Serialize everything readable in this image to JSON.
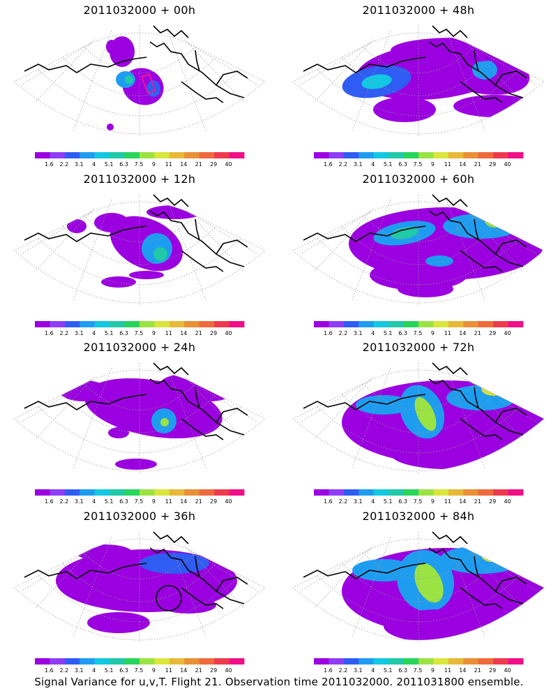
{
  "colors": {
    "bins": [
      "#9b00e0",
      "#8f3df5",
      "#2f5cf2",
      "#1e9df0",
      "#12c8e2",
      "#20c9a8",
      "#27d55a",
      "#9be342",
      "#d9e63a",
      "#e8b938",
      "#e89035",
      "#ee6a3b",
      "#ee3a4f",
      "#f00f86"
    ],
    "coast": "#000000",
    "grid": "#9a9a9a",
    "track": "#ff1493"
  },
  "colorbar": {
    "labels": [
      "1.6",
      "2.2",
      "3.1",
      "4",
      "5.1",
      "6.3",
      "7.5",
      "9",
      "11",
      "14",
      "21",
      "29",
      "40"
    ]
  },
  "panels": [
    {
      "title": "2011032000 + 00h"
    },
    {
      "title": "2011032000 + 48h"
    },
    {
      "title": "2011032000 + 12h"
    },
    {
      "title": "2011032000 + 60h"
    },
    {
      "title": "2011032000 + 24h"
    },
    {
      "title": "2011032000 + 72h"
    },
    {
      "title": "2011032000 + 36h"
    },
    {
      "title": "2011032000 + 84h"
    }
  ],
  "chart_data": {
    "type": "heatmap",
    "title": "Signal Variance for u,v,T. Flight 21. Observation time 2011032000. 2011031800 ensemble.",
    "base_time": "2011032000",
    "lead_times_h": [
      0,
      12,
      24,
      36,
      48,
      60,
      72,
      84
    ],
    "color_levels": [
      1.6,
      2.2,
      3.1,
      4,
      5.1,
      6.3,
      7.5,
      9,
      11,
      14,
      21,
      29,
      40
    ]
  },
  "footer": "Signal Variance for u,v,T. Flight 21. Observation time 2011032000. 2011031800 ensemble."
}
